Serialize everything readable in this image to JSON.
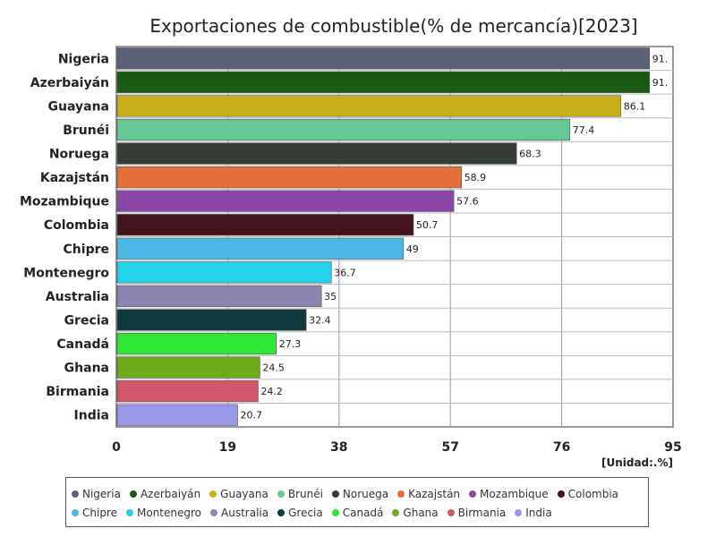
{
  "chart_data": {
    "type": "bar",
    "orientation": "horizontal",
    "title": "Exportaciones de combustible(% de mercancía)[2023]",
    "unit_label": "[Unidad:.%]",
    "xlim": [
      0,
      95
    ],
    "x_ticks": [
      "0",
      "19",
      "38",
      "57",
      "76",
      "95"
    ],
    "grid": true,
    "legend_position": "bottom",
    "categories": [
      "Nigeria",
      "Azerbaiyán",
      "Guayana",
      "Brunéi",
      "Noruega",
      "Kazajstán",
      "Mozambique",
      "Colombia",
      "Chipre",
      "Montenegro",
      "Australia",
      "Grecia",
      "Canadá",
      "Ghana",
      "Birmania",
      "India"
    ],
    "values": [
      91,
      91,
      86.1,
      77.4,
      68.3,
      58.9,
      57.6,
      50.7,
      49,
      36.7,
      35,
      32.4,
      27.3,
      24.5,
      24.2,
      20.7
    ],
    "value_labels": [
      "91.",
      "91.",
      "86.1",
      "77.4",
      "68.3",
      "58.9",
      "57.6",
      "50.7",
      "49",
      "36.7",
      "35",
      "32.4",
      "27.3",
      "24.5",
      "24.2",
      "20.7"
    ],
    "colors": [
      "#5a6178",
      "#1b5a12",
      "#c8ae1b",
      "#67c896",
      "#363c36",
      "#e66e3a",
      "#8b47a6",
      "#43141d",
      "#4bb7e6",
      "#23d1e8",
      "#8c86b3",
      "#0e3a3d",
      "#2ee836",
      "#6dab1b",
      "#d4566a",
      "#9b98ea"
    ]
  }
}
